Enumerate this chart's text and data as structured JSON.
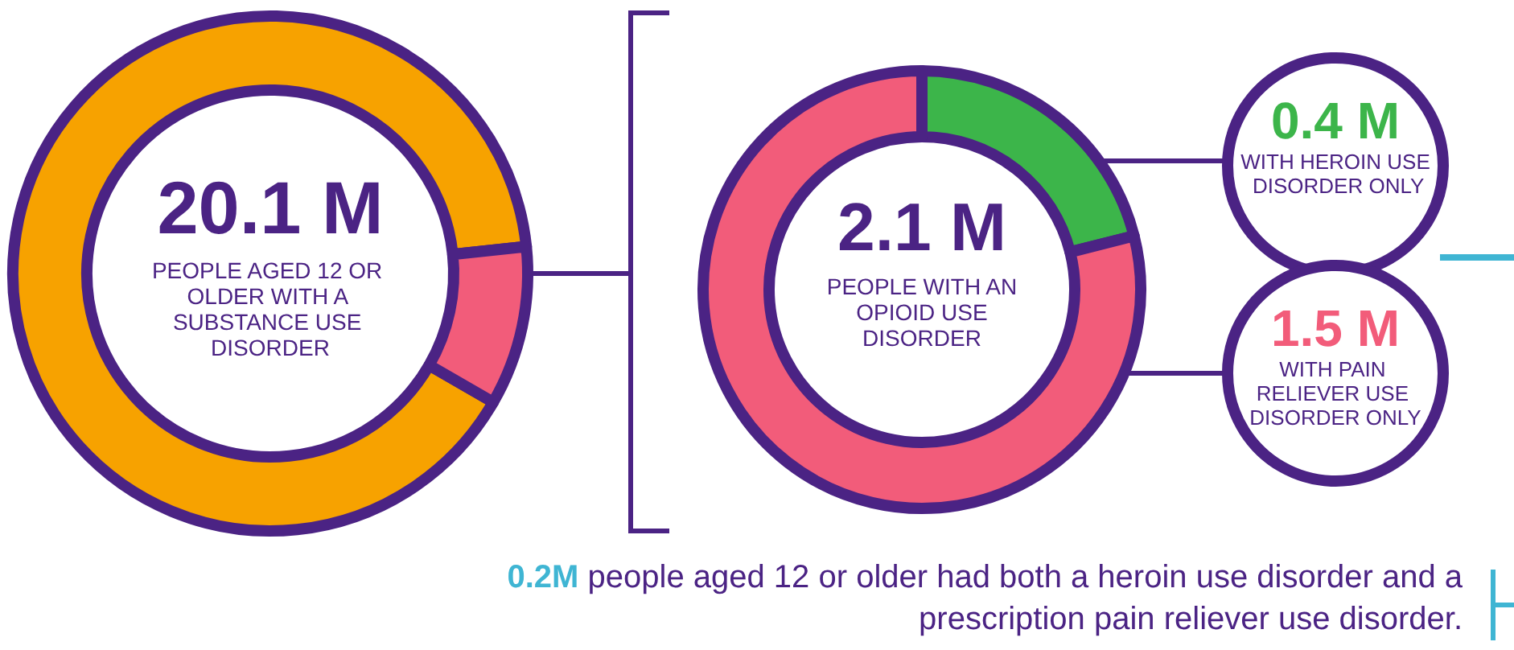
{
  "chart_data": [
    {
      "type": "donut",
      "title": "20.1 M",
      "subtitle": "PEOPLE AGED 12 OR OLDER WITH A SUBSTANCE USE DISORDER",
      "categories": [
        null,
        null
      ],
      "values": [
        90,
        10
      ],
      "colors": [
        "#f7a200",
        "#f25c7a"
      ]
    },
    {
      "type": "donut",
      "title": "2.1 M",
      "subtitle": "PEOPLE WITH AN OPIOID USE DISORDER",
      "categories": [
        "WITH HEROIN USE DISORDER ONLY",
        "WITH PAIN RELIEVER USE DISORDER ONLY"
      ],
      "values": [
        0.4,
        1.5
      ],
      "colors": [
        "#3cb54a",
        "#f25c7a"
      ],
      "value_labels": [
        "0.4 M",
        "1.5 M"
      ],
      "annotations": [
        "0.2M people aged 12 or older had both a heroin use disorder and a prescription pain reliever use disorder."
      ]
    }
  ]
}
